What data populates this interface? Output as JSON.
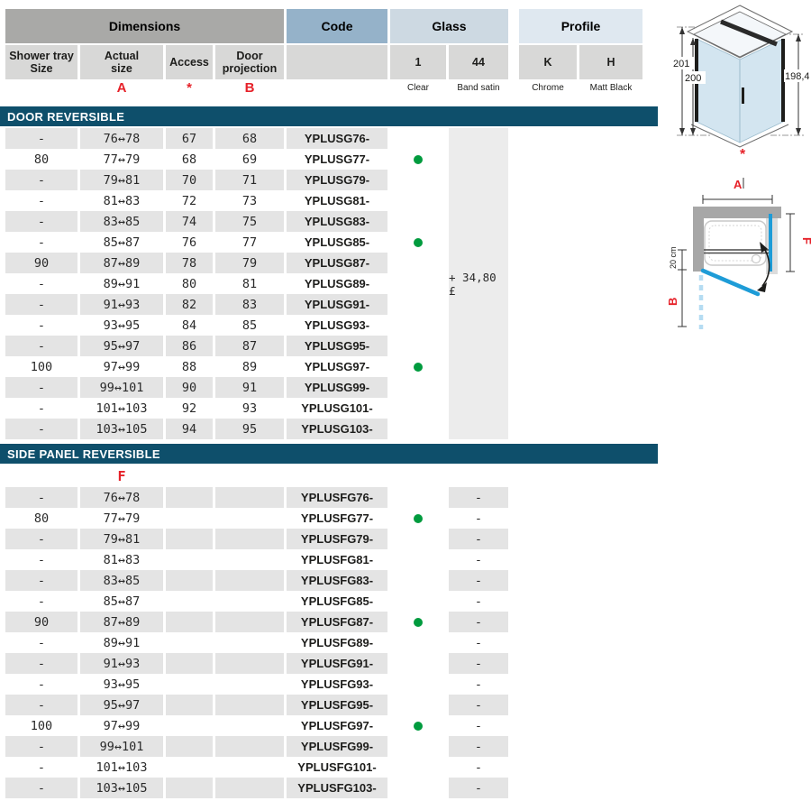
{
  "colors": {
    "teal_bar": "#0e4f6b",
    "stripe": "#e4e4e4",
    "header_gray": "#a9a9a7",
    "subhead_gray": "#d8d8d7",
    "code_blue": "#95b2c9",
    "glass_blue": "#cdd9e2",
    "profile_blue": "#dfe8f0",
    "accent_red": "#e62129",
    "dot_green": "#009b3e",
    "glass_fill": "#d3e5f0",
    "door_blue": "#1e9cd7"
  },
  "header": {
    "groups": {
      "dimensions": "Dimensions",
      "code": "Code",
      "glass": "Glass",
      "profile": "Profile"
    },
    "columns": {
      "tray": "Shower tray\nSize",
      "size": "Actual\nsize",
      "access": "Access",
      "projection": "Door\nprojection",
      "glass1": "1",
      "glass44": "44",
      "profileK": "K",
      "profileH": "H"
    },
    "captions": {
      "glass1": "Clear",
      "glass44": "Band satin",
      "profileK": "Chrome",
      "profileH": "Matt Black"
    },
    "letters": {
      "size": "A",
      "access": "*",
      "projection": "B"
    }
  },
  "sections": [
    {
      "title": "DOOR REVERSIBLE",
      "price": "+ 34,80 £",
      "rows": [
        {
          "tray": "-",
          "size": "76↔78",
          "access": "67",
          "proj": "68",
          "code": "YPLUSG76-",
          "clear": false
        },
        {
          "tray": "80",
          "size": "77↔79",
          "access": "68",
          "proj": "69",
          "code": "YPLUSG77-",
          "clear": true
        },
        {
          "tray": "-",
          "size": "79↔81",
          "access": "70",
          "proj": "71",
          "code": "YPLUSG79-",
          "clear": false
        },
        {
          "tray": "-",
          "size": "81↔83",
          "access": "72",
          "proj": "73",
          "code": "YPLUSG81-",
          "clear": false
        },
        {
          "tray": "-",
          "size": "83↔85",
          "access": "74",
          "proj": "75",
          "code": "YPLUSG83-",
          "clear": false
        },
        {
          "tray": "-",
          "size": "85↔87",
          "access": "76",
          "proj": "77",
          "code": "YPLUSG85-",
          "clear": true
        },
        {
          "tray": "90",
          "size": "87↔89",
          "access": "78",
          "proj": "79",
          "code": "YPLUSG87-",
          "clear": false
        },
        {
          "tray": "-",
          "size": "89↔91",
          "access": "80",
          "proj": "81",
          "code": "YPLUSG89-",
          "clear": false
        },
        {
          "tray": "-",
          "size": "91↔93",
          "access": "82",
          "proj": "83",
          "code": "YPLUSG91-",
          "clear": false
        },
        {
          "tray": "-",
          "size": "93↔95",
          "access": "84",
          "proj": "85",
          "code": "YPLUSG93-",
          "clear": false
        },
        {
          "tray": "-",
          "size": "95↔97",
          "access": "86",
          "proj": "87",
          "code": "YPLUSG95-",
          "clear": false
        },
        {
          "tray": "100",
          "size": "97↔99",
          "access": "88",
          "proj": "89",
          "code": "YPLUSG97-",
          "clear": true
        },
        {
          "tray": "-",
          "size": "99↔101",
          "access": "90",
          "proj": "91",
          "code": "YPLUSG99-",
          "clear": false
        },
        {
          "tray": "-",
          "size": "101↔103",
          "access": "92",
          "proj": "93",
          "code": "YPLUSG101-",
          "clear": false
        },
        {
          "tray": "-",
          "size": "103↔105",
          "access": "94",
          "proj": "95",
          "code": "YPLUSG103-",
          "clear": false
        }
      ]
    },
    {
      "title": "SIDE PANEL REVERSIBLE",
      "letter": "F",
      "rows": [
        {
          "tray": "-",
          "size": "76↔78",
          "access": "",
          "proj": "",
          "code": "YPLUSFG76-",
          "clear": false,
          "band": "-"
        },
        {
          "tray": "80",
          "size": "77↔79",
          "access": "",
          "proj": "",
          "code": "YPLUSFG77-",
          "clear": true,
          "band": "-"
        },
        {
          "tray": "-",
          "size": "79↔81",
          "access": "",
          "proj": "",
          "code": "YPLUSFG79-",
          "clear": false,
          "band": "-"
        },
        {
          "tray": "-",
          "size": "81↔83",
          "access": "",
          "proj": "",
          "code": "YPLUSFG81-",
          "clear": false,
          "band": "-"
        },
        {
          "tray": "-",
          "size": "83↔85",
          "access": "",
          "proj": "",
          "code": "YPLUSFG83-",
          "clear": false,
          "band": "-"
        },
        {
          "tray": "-",
          "size": "85↔87",
          "access": "",
          "proj": "",
          "code": "YPLUSFG85-",
          "clear": false,
          "band": "-"
        },
        {
          "tray": "90",
          "size": "87↔89",
          "access": "",
          "proj": "",
          "code": "YPLUSFG87-",
          "clear": true,
          "band": "-"
        },
        {
          "tray": "-",
          "size": "89↔91",
          "access": "",
          "proj": "",
          "code": "YPLUSFG89-",
          "clear": false,
          "band": "-"
        },
        {
          "tray": "-",
          "size": "91↔93",
          "access": "",
          "proj": "",
          "code": "YPLUSFG91-",
          "clear": false,
          "band": "-"
        },
        {
          "tray": "-",
          "size": "93↔95",
          "access": "",
          "proj": "",
          "code": "YPLUSFG93-",
          "clear": false,
          "band": "-"
        },
        {
          "tray": "-",
          "size": "95↔97",
          "access": "",
          "proj": "",
          "code": "YPLUSFG95-",
          "clear": false,
          "band": "-"
        },
        {
          "tray": "100",
          "size": "97↔99",
          "access": "",
          "proj": "",
          "code": "YPLUSFG97-",
          "clear": true,
          "band": "-"
        },
        {
          "tray": "-",
          "size": "99↔101",
          "access": "",
          "proj": "",
          "code": "YPLUSFG99-",
          "clear": false,
          "band": "-"
        },
        {
          "tray": "-",
          "size": "101↔103",
          "access": "",
          "proj": "",
          "code": "YPLUSFG101-",
          "clear": false,
          "band": "-"
        },
        {
          "tray": "-",
          "size": "103↔105",
          "access": "",
          "proj": "",
          "code": "YPLUSFG103-",
          "clear": false,
          "band": "-"
        }
      ]
    }
  ],
  "diagram_iso": {
    "dim_left_outer": "201",
    "dim_left_inner": "200",
    "dim_right": "198,4",
    "star": "*"
  },
  "diagram_plan": {
    "dim_top": "A",
    "dim_right": "F",
    "dim_left": "B",
    "wall_offset": "20 cm"
  }
}
